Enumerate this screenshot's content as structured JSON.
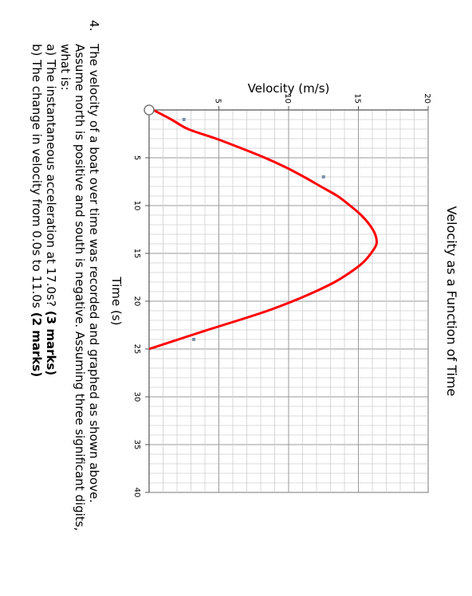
{
  "chart_data": {
    "type": "line",
    "title": "Velocity as a Function of Time",
    "xlabel": "Time (s)",
    "ylabel": "Velocity (m/s)",
    "xlim": [
      0,
      40
    ],
    "ylim": [
      0,
      20
    ],
    "x_ticks": [
      5,
      10,
      15,
      20,
      25,
      30,
      35,
      40
    ],
    "y_ticks": [
      5,
      10,
      15,
      20
    ],
    "grid": true,
    "rotation": "rotated 90 degrees clockwise",
    "series": [
      {
        "color": "#ff0000",
        "x": [
          0,
          1,
          2,
          3,
          4,
          5,
          6,
          7,
          8,
          9,
          10,
          11,
          12,
          13,
          14,
          15,
          16,
          17,
          18,
          19,
          20,
          21,
          22,
          23,
          24,
          25
        ],
        "y": [
          0.3,
          1.6,
          2.8,
          4.8,
          6.6,
          8.3,
          9.8,
          11.1,
          12.3,
          13.5,
          14.4,
          15.2,
          15.8,
          16.2,
          16.3,
          15.9,
          15.3,
          14.4,
          13.3,
          11.9,
          10.3,
          8.5,
          6.4,
          4.2,
          2.1,
          0.0
        ]
      }
    ],
    "marked_points": [
      {
        "x": 1,
        "y": 2.5
      },
      {
        "x": 7,
        "y": 12.5
      },
      {
        "x": 24,
        "y": 3.2
      }
    ]
  },
  "question": {
    "number": "4.",
    "lines": [
      "The velocity of a boat over time was recorded and graphed as shown above.",
      "Assume north is positive and south is negative.  Assuming three significant digits,",
      "what is:"
    ],
    "part_a": {
      "text": "a)  The instantaneous acceleration at 17.0s?",
      "marks": "(3 marks)"
    },
    "part_b": {
      "text": "b)  The change in velocity from 0.0s to 11.0s",
      "marks": "(2 marks)"
    }
  }
}
